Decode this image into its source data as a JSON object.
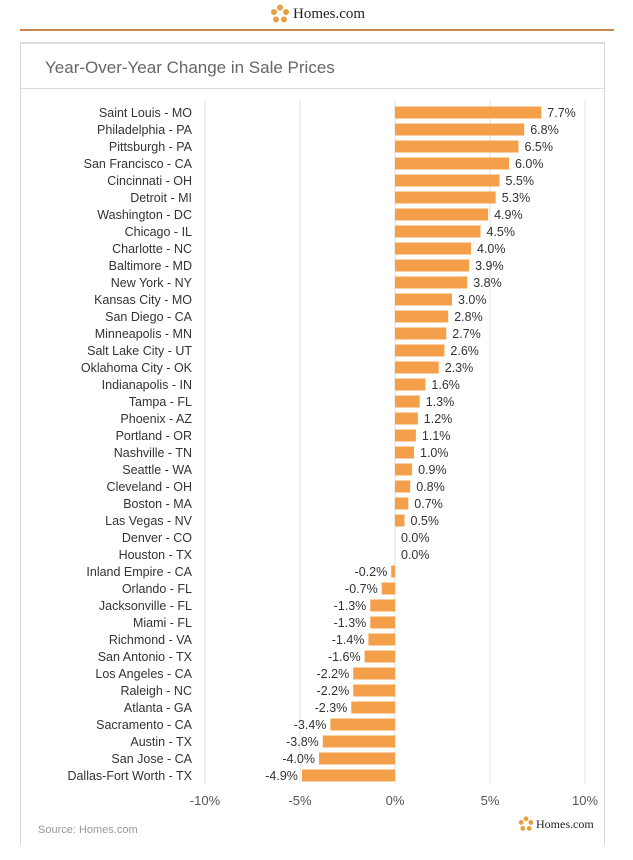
{
  "brand": {
    "name": "Homes.com",
    "accent": "#f4a04a",
    "logo_color": "#e8a040"
  },
  "chart_data": {
    "type": "bar",
    "orientation": "horizontal",
    "title": "Year-Over-Year Change in Sale Prices",
    "categories": [
      "Saint Louis - MO",
      "Philadelphia - PA",
      "Pittsburgh - PA",
      "San Francisco - CA",
      "Cincinnati - OH",
      "Detroit - MI",
      "Washington - DC",
      "Chicago - IL",
      "Charlotte - NC",
      "Baltimore - MD",
      "New York - NY",
      "Kansas City - MO",
      "San Diego - CA",
      "Minneapolis - MN",
      "Salt Lake City - UT",
      "Oklahoma City - OK",
      "Indianapolis - IN",
      "Tampa - FL",
      "Phoenix - AZ",
      "Portland - OR",
      "Nashville - TN",
      "Seattle - WA",
      "Cleveland - OH",
      "Boston - MA",
      "Las Vegas - NV",
      "Denver - CO",
      "Houston - TX",
      "Inland Empire - CA",
      "Orlando - FL",
      "Jacksonville - FL",
      "Miami - FL",
      "Richmond - VA",
      "San Antonio - TX",
      "Los Angeles - CA",
      "Raleigh - NC",
      "Atlanta - GA",
      "Sacramento - CA",
      "Austin - TX",
      "San Jose - CA",
      "Dallas-Fort Worth - TX"
    ],
    "values": [
      7.7,
      6.8,
      6.5,
      6.0,
      5.5,
      5.3,
      4.9,
      4.5,
      4.0,
      3.9,
      3.8,
      3.0,
      2.8,
      2.7,
      2.6,
      2.3,
      1.6,
      1.3,
      1.2,
      1.1,
      1.0,
      0.9,
      0.8,
      0.7,
      0.5,
      0.0,
      0.0,
      -0.2,
      -0.7,
      -1.3,
      -1.3,
      -1.4,
      -1.6,
      -2.2,
      -2.2,
      -2.3,
      -3.4,
      -3.8,
      -4.0,
      -4.9
    ],
    "data_labels": [
      "7.7%",
      "6.8%",
      "6.5%",
      "6.0%",
      "5.5%",
      "5.3%",
      "4.9%",
      "4.5%",
      "4.0%",
      "3.9%",
      "3.8%",
      "3.0%",
      "2.8%",
      "2.7%",
      "2.6%",
      "2.3%",
      "1.6%",
      "1.3%",
      "1.2%",
      "1.1%",
      "1.0%",
      "0.9%",
      "0.8%",
      "0.7%",
      "0.5%",
      "0.0%",
      "0.0%",
      "-0.2%",
      "-0.7%",
      "-1.3%",
      "-1.3%",
      "-1.4%",
      "-1.6%",
      "-2.2%",
      "-2.2%",
      "-2.3%",
      "-3.4%",
      "-3.8%",
      "-4.0%",
      "-4.9%"
    ],
    "xlim": [
      -10,
      10
    ],
    "xticks": [
      -10,
      -5,
      0,
      5,
      10
    ],
    "xtick_labels": [
      "-10%",
      "-5%",
      "0%",
      "5%",
      "10%"
    ],
    "grid": true,
    "bar_color": "#f4a04a"
  },
  "source": "Source: Homes.com"
}
